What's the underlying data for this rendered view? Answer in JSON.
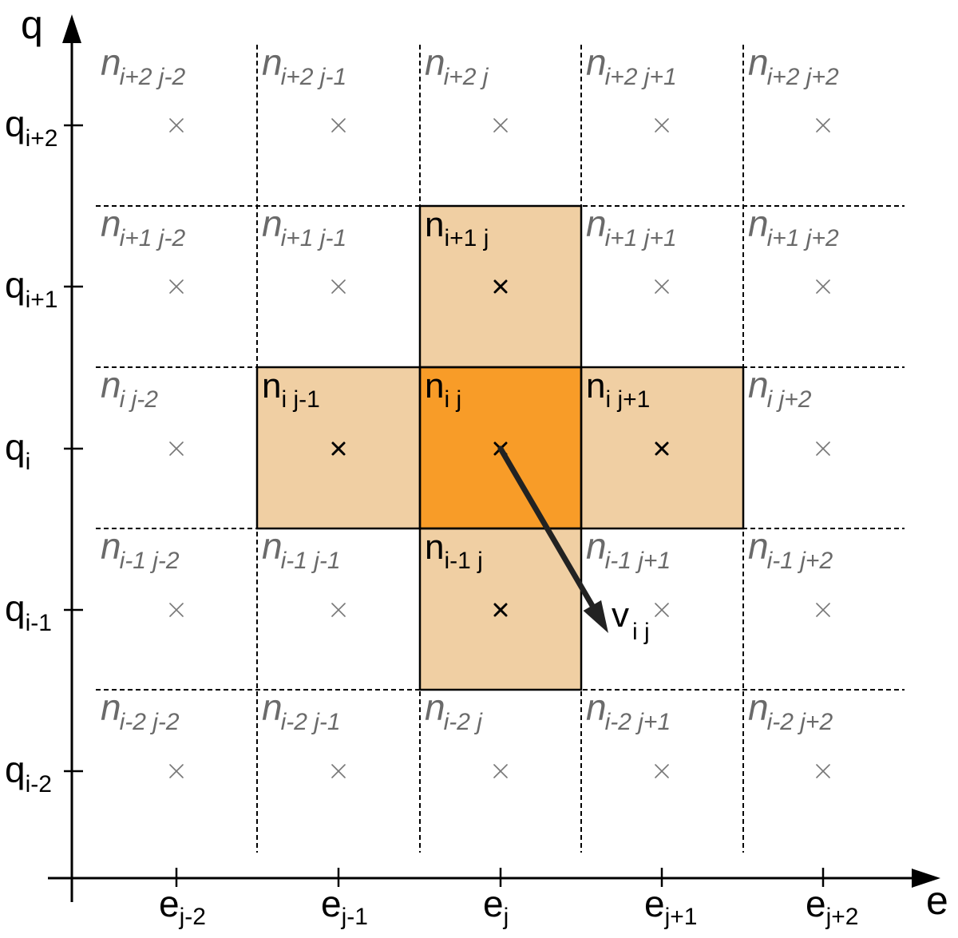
{
  "axes": {
    "y_label": "q",
    "x_label": "e",
    "q_ticks": [
      {
        "base": "q",
        "sub": "i+2"
      },
      {
        "base": "q",
        "sub": "i+1"
      },
      {
        "base": "q",
        "sub": "i"
      },
      {
        "base": "q",
        "sub": "i-1"
      },
      {
        "base": "q",
        "sub": "i-2"
      }
    ],
    "e_ticks": [
      {
        "base": "e",
        "sub": "j-2"
      },
      {
        "base": "e",
        "sub": "j-1"
      },
      {
        "base": "e",
        "sub": "j"
      },
      {
        "base": "e",
        "sub": "j+1"
      },
      {
        "base": "e",
        "sub": "j+2"
      }
    ]
  },
  "cells": [
    [
      {
        "base": "n",
        "sub": "i+2 j-2",
        "style": "plain"
      },
      {
        "base": "n",
        "sub": "i+2 j-1",
        "style": "plain"
      },
      {
        "base": "n",
        "sub": "i+2 j",
        "style": "plain"
      },
      {
        "base": "n",
        "sub": "i+2 j+1",
        "style": "plain"
      },
      {
        "base": "n",
        "sub": "i+2 j+2",
        "style": "plain"
      }
    ],
    [
      {
        "base": "n",
        "sub": "i+1 j-2",
        "style": "plain"
      },
      {
        "base": "n",
        "sub": "i+1 j-1",
        "style": "plain"
      },
      {
        "base": "n",
        "sub": "i+1 j",
        "style": "neighbor"
      },
      {
        "base": "n",
        "sub": "i+1 j+1",
        "style": "plain"
      },
      {
        "base": "n",
        "sub": "i+1 j+2",
        "style": "plain"
      }
    ],
    [
      {
        "base": "n",
        "sub": "i j-2",
        "style": "plain"
      },
      {
        "base": "n",
        "sub": "i j-1",
        "style": "neighbor"
      },
      {
        "base": "n",
        "sub": "i j",
        "style": "center"
      },
      {
        "base": "n",
        "sub": "i j+1",
        "style": "neighbor"
      },
      {
        "base": "n",
        "sub": "i j+2",
        "style": "plain"
      }
    ],
    [
      {
        "base": "n",
        "sub": "i-1 j-2",
        "style": "plain"
      },
      {
        "base": "n",
        "sub": "i-1 j-1",
        "style": "plain"
      },
      {
        "base": "n",
        "sub": "i-1 j",
        "style": "neighbor"
      },
      {
        "base": "n",
        "sub": "i-1 j+1",
        "style": "plain"
      },
      {
        "base": "n",
        "sub": "i-1 j+2",
        "style": "plain"
      }
    ],
    [
      {
        "base": "n",
        "sub": "i-2 j-2",
        "style": "plain"
      },
      {
        "base": "n",
        "sub": "i-2 j-1",
        "style": "plain"
      },
      {
        "base": "n",
        "sub": "i-2 j",
        "style": "plain"
      },
      {
        "base": "n",
        "sub": "i-2 j+1",
        "style": "plain"
      },
      {
        "base": "n",
        "sub": "i-2 j+2",
        "style": "plain"
      }
    ]
  ],
  "vector": {
    "base": "v",
    "sub": "i j"
  },
  "colors": {
    "center_fill": "#F89C28",
    "neighbor_fill": "#F0CFA3",
    "grid_line": "#000000",
    "plain_label": "#6a6a6a",
    "marker_plain": "#777777",
    "arrow": "#222222"
  }
}
